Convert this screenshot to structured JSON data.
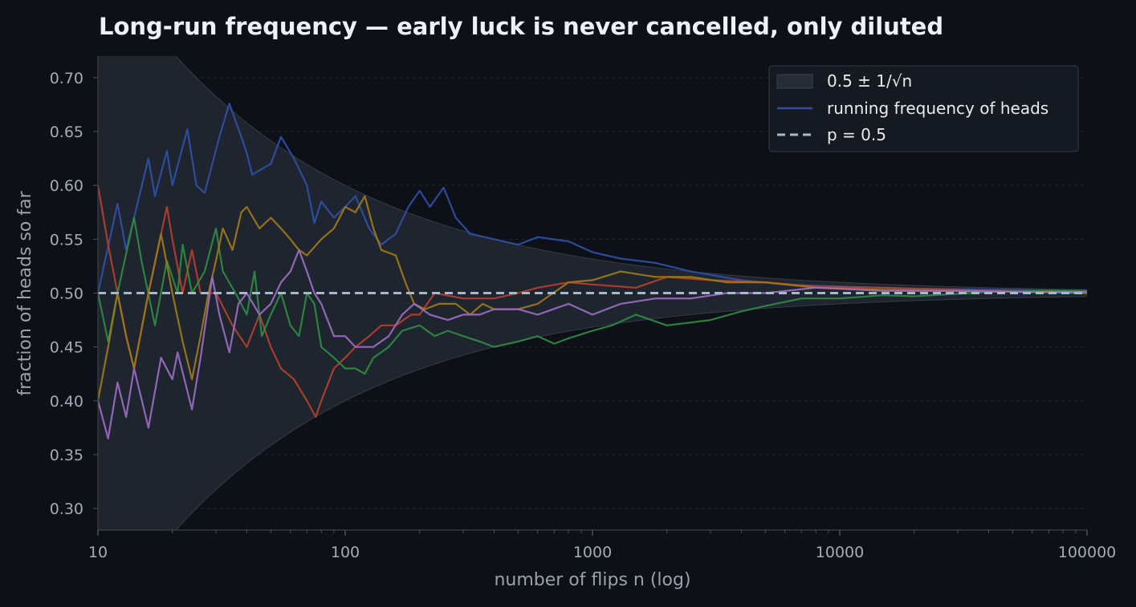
{
  "chart_data": {
    "type": "line",
    "title": "Long-run frequency — early luck is never cancelled, only diluted",
    "xlabel": "number of flips n (log)",
    "ylabel": "fraction of heads so far",
    "x_scale": "log",
    "xlim": [
      10,
      100000
    ],
    "ylim": [
      0.28,
      0.72
    ],
    "x_ticks": [
      10,
      100,
      1000,
      10000,
      100000
    ],
    "x_tick_labels": [
      "10",
      "100",
      "1000",
      "10000",
      "100000"
    ],
    "y_ticks": [
      0.3,
      0.35,
      0.4,
      0.45,
      0.5,
      0.55,
      0.6,
      0.65,
      0.7
    ],
    "y_tick_labels": [
      "0.30",
      "0.35",
      "0.40",
      "0.45",
      "0.50",
      "0.55",
      "0.60",
      "0.65",
      "0.70"
    ],
    "grid": "horizontal dashed",
    "legend_position": "top-right",
    "legend": [
      {
        "label": "0.5 ± 1/√n",
        "kind": "band"
      },
      {
        "label": "running frequency of heads",
        "kind": "line"
      },
      {
        "label": "p = 0.5",
        "kind": "dashed"
      }
    ],
    "band": {
      "center": 0.5,
      "halfwidth": "1/sqrt(n)"
    },
    "reference_line": {
      "y": 0.5,
      "color": "#a9b8c8"
    },
    "series": [
      {
        "color": "#2f4fa6",
        "points": [
          [
            10,
            0.5
          ],
          [
            12,
            0.583
          ],
          [
            13,
            0.54
          ],
          [
            16,
            0.625
          ],
          [
            17,
            0.59
          ],
          [
            19,
            0.632
          ],
          [
            20,
            0.6
          ],
          [
            23,
            0.652
          ],
          [
            25,
            0.6
          ],
          [
            27,
            0.593
          ],
          [
            31,
            0.645
          ],
          [
            34,
            0.676
          ],
          [
            36,
            0.66
          ],
          [
            38,
            0.645
          ],
          [
            40,
            0.63
          ],
          [
            42,
            0.61
          ],
          [
            50,
            0.62
          ],
          [
            55,
            0.645
          ],
          [
            62,
            0.625
          ],
          [
            70,
            0.6
          ],
          [
            75,
            0.565
          ],
          [
            80,
            0.585
          ],
          [
            90,
            0.57
          ],
          [
            100,
            0.58
          ],
          [
            110,
            0.59
          ],
          [
            125,
            0.56
          ],
          [
            140,
            0.545
          ],
          [
            160,
            0.555
          ],
          [
            180,
            0.58
          ],
          [
            200,
            0.595
          ],
          [
            220,
            0.58
          ],
          [
            250,
            0.598
          ],
          [
            280,
            0.57
          ],
          [
            320,
            0.555
          ],
          [
            400,
            0.55
          ],
          [
            500,
            0.545
          ],
          [
            600,
            0.552
          ],
          [
            800,
            0.548
          ],
          [
            1000,
            0.538
          ],
          [
            1300,
            0.532
          ],
          [
            1800,
            0.528
          ],
          [
            2500,
            0.52
          ],
          [
            4000,
            0.512
          ],
          [
            6000,
            0.508
          ],
          [
            10000,
            0.506
          ],
          [
            20000,
            0.504
          ],
          [
            50000,
            0.503
          ],
          [
            100000,
            0.502
          ]
        ]
      },
      {
        "color": "#b3402e",
        "points": [
          [
            10,
            0.6
          ],
          [
            11,
            0.545
          ],
          [
            12,
            0.5
          ],
          [
            13,
            0.46
          ],
          [
            14,
            0.43
          ],
          [
            16,
            0.5
          ],
          [
            19,
            0.58
          ],
          [
            20,
            0.55
          ],
          [
            22,
            0.5
          ],
          [
            24,
            0.54
          ],
          [
            26,
            0.5
          ],
          [
            30,
            0.5
          ],
          [
            35,
            0.47
          ],
          [
            40,
            0.45
          ],
          [
            45,
            0.48
          ],
          [
            50,
            0.45
          ],
          [
            55,
            0.43
          ],
          [
            62,
            0.42
          ],
          [
            70,
            0.4
          ],
          [
            76,
            0.385
          ],
          [
            80,
            0.4
          ],
          [
            90,
            0.43
          ],
          [
            100,
            0.44
          ],
          [
            110,
            0.45
          ],
          [
            125,
            0.46
          ],
          [
            140,
            0.47
          ],
          [
            160,
            0.47
          ],
          [
            185,
            0.48
          ],
          [
            200,
            0.48
          ],
          [
            230,
            0.5
          ],
          [
            300,
            0.495
          ],
          [
            400,
            0.495
          ],
          [
            500,
            0.5
          ],
          [
            600,
            0.505
          ],
          [
            800,
            0.51
          ],
          [
            1000,
            0.508
          ],
          [
            1500,
            0.505
          ],
          [
            2000,
            0.515
          ],
          [
            3000,
            0.512
          ],
          [
            5000,
            0.51
          ],
          [
            8000,
            0.506
          ],
          [
            15000,
            0.505
          ],
          [
            30000,
            0.503
          ],
          [
            60000,
            0.501
          ],
          [
            100000,
            0.5
          ]
        ]
      },
      {
        "color": "#2e8a42",
        "points": [
          [
            10,
            0.5
          ],
          [
            11,
            0.455
          ],
          [
            12,
            0.5
          ],
          [
            14,
            0.57
          ],
          [
            15,
            0.53
          ],
          [
            17,
            0.47
          ],
          [
            19,
            0.53
          ],
          [
            21,
            0.5
          ],
          [
            22,
            0.545
          ],
          [
            24,
            0.5
          ],
          [
            27,
            0.52
          ],
          [
            30,
            0.56
          ],
          [
            32,
            0.52
          ],
          [
            36,
            0.5
          ],
          [
            40,
            0.48
          ],
          [
            43,
            0.52
          ],
          [
            46,
            0.46
          ],
          [
            50,
            0.48
          ],
          [
            55,
            0.5
          ],
          [
            60,
            0.47
          ],
          [
            65,
            0.46
          ],
          [
            70,
            0.5
          ],
          [
            75,
            0.49
          ],
          [
            80,
            0.45
          ],
          [
            90,
            0.44
          ],
          [
            100,
            0.43
          ],
          [
            110,
            0.43
          ],
          [
            120,
            0.425
          ],
          [
            130,
            0.44
          ],
          [
            150,
            0.45
          ],
          [
            170,
            0.465
          ],
          [
            200,
            0.47
          ],
          [
            230,
            0.46
          ],
          [
            260,
            0.465
          ],
          [
            300,
            0.46
          ],
          [
            350,
            0.455
          ],
          [
            400,
            0.45
          ],
          [
            500,
            0.455
          ],
          [
            600,
            0.46
          ],
          [
            700,
            0.453
          ],
          [
            800,
            0.458
          ],
          [
            1000,
            0.465
          ],
          [
            1200,
            0.47
          ],
          [
            1500,
            0.48
          ],
          [
            2000,
            0.47
          ],
          [
            3000,
            0.475
          ],
          [
            4000,
            0.483
          ],
          [
            5000,
            0.488
          ],
          [
            7000,
            0.495
          ],
          [
            10000,
            0.495
          ],
          [
            15000,
            0.498
          ],
          [
            20000,
            0.497
          ],
          [
            40000,
            0.501
          ],
          [
            70000,
            0.502
          ],
          [
            100000,
            0.502
          ]
        ]
      },
      {
        "color": "#a07818",
        "points": [
          [
            10,
            0.4
          ],
          [
            11,
            0.45
          ],
          [
            12,
            0.5
          ],
          [
            13,
            0.46
          ],
          [
            14,
            0.43
          ],
          [
            16,
            0.5
          ],
          [
            18,
            0.555
          ],
          [
            20,
            0.5
          ],
          [
            22,
            0.455
          ],
          [
            24,
            0.42
          ],
          [
            26,
            0.46
          ],
          [
            28,
            0.5
          ],
          [
            30,
            0.53
          ],
          [
            32,
            0.56
          ],
          [
            35,
            0.54
          ],
          [
            38,
            0.575
          ],
          [
            40,
            0.58
          ],
          [
            45,
            0.56
          ],
          [
            50,
            0.57
          ],
          [
            55,
            0.56
          ],
          [
            60,
            0.55
          ],
          [
            65,
            0.54
          ],
          [
            70,
            0.535
          ],
          [
            80,
            0.55
          ],
          [
            90,
            0.56
          ],
          [
            100,
            0.58
          ],
          [
            110,
            0.575
          ],
          [
            120,
            0.59
          ],
          [
            130,
            0.56
          ],
          [
            140,
            0.54
          ],
          [
            160,
            0.535
          ],
          [
            175,
            0.51
          ],
          [
            190,
            0.49
          ],
          [
            210,
            0.485
          ],
          [
            240,
            0.49
          ],
          [
            280,
            0.49
          ],
          [
            320,
            0.48
          ],
          [
            360,
            0.49
          ],
          [
            400,
            0.485
          ],
          [
            500,
            0.485
          ],
          [
            600,
            0.49
          ],
          [
            800,
            0.51
          ],
          [
            1000,
            0.512
          ],
          [
            1300,
            0.52
          ],
          [
            1800,
            0.515
          ],
          [
            2500,
            0.515
          ],
          [
            3500,
            0.51
          ],
          [
            5000,
            0.51
          ],
          [
            8000,
            0.505
          ],
          [
            15000,
            0.503
          ],
          [
            30000,
            0.502
          ],
          [
            60000,
            0.501
          ],
          [
            100000,
            0.5
          ]
        ]
      },
      {
        "color": "#9b6bc4",
        "points": [
          [
            10,
            0.4
          ],
          [
            11,
            0.365
          ],
          [
            12,
            0.417
          ],
          [
            13,
            0.385
          ],
          [
            14,
            0.43
          ],
          [
            16,
            0.375
          ],
          [
            18,
            0.44
          ],
          [
            20,
            0.42
          ],
          [
            21,
            0.445
          ],
          [
            24,
            0.392
          ],
          [
            26,
            0.44
          ],
          [
            29,
            0.515
          ],
          [
            31,
            0.48
          ],
          [
            34,
            0.445
          ],
          [
            37,
            0.49
          ],
          [
            40,
            0.5
          ],
          [
            45,
            0.48
          ],
          [
            50,
            0.49
          ],
          [
            55,
            0.51
          ],
          [
            60,
            0.52
          ],
          [
            65,
            0.54
          ],
          [
            70,
            0.52
          ],
          [
            75,
            0.5
          ],
          [
            80,
            0.49
          ],
          [
            90,
            0.46
          ],
          [
            100,
            0.46
          ],
          [
            110,
            0.45
          ],
          [
            130,
            0.45
          ],
          [
            150,
            0.46
          ],
          [
            170,
            0.48
          ],
          [
            190,
            0.49
          ],
          [
            220,
            0.48
          ],
          [
            260,
            0.475
          ],
          [
            300,
            0.48
          ],
          [
            350,
            0.48
          ],
          [
            400,
            0.485
          ],
          [
            500,
            0.485
          ],
          [
            600,
            0.48
          ],
          [
            800,
            0.49
          ],
          [
            1000,
            0.48
          ],
          [
            1300,
            0.49
          ],
          [
            1800,
            0.495
          ],
          [
            2500,
            0.495
          ],
          [
            3500,
            0.5
          ],
          [
            5000,
            0.5
          ],
          [
            8000,
            0.505
          ],
          [
            15000,
            0.502
          ],
          [
            30000,
            0.502
          ],
          [
            60000,
            0.501
          ],
          [
            100000,
            0.501
          ]
        ]
      }
    ]
  }
}
